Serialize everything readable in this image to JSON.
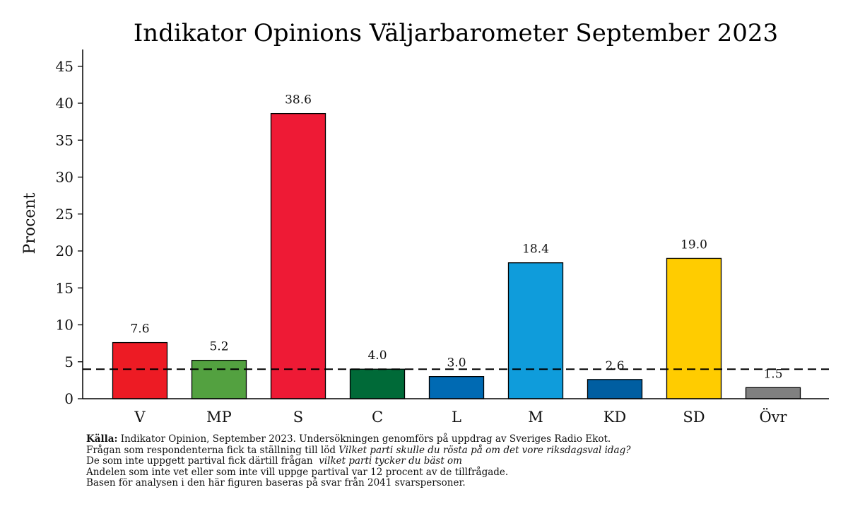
{
  "chart_data": {
    "type": "bar",
    "title": "Indikator Opinions Väljarbarometer September 2023",
    "ylabel": "Procent",
    "xlabel": "",
    "ylim": [
      0,
      47
    ],
    "yticks": [
      0,
      5,
      10,
      15,
      20,
      25,
      30,
      35,
      40,
      45
    ],
    "categories": [
      "V",
      "MP",
      "S",
      "C",
      "L",
      "M",
      "KD",
      "SD",
      "Övr"
    ],
    "values": [
      7.6,
      5.2,
      38.6,
      4.0,
      3.0,
      18.4,
      2.6,
      19.0,
      1.5
    ],
    "value_labels": [
      "7.6",
      "5.2",
      "38.6",
      "4.0",
      "3.0",
      "18.4",
      "2.6",
      "19.0",
      "1.5"
    ],
    "colors": [
      "#ED1B24",
      "#53A140",
      "#EE1A35",
      "#006A38",
      "#006AB3",
      "#0F9CDB",
      "#005EA1",
      "#FFCC00",
      "#808080"
    ],
    "reference_line": {
      "value": 4,
      "style": "dashed"
    },
    "grid": false,
    "legend": "none"
  },
  "footnote": {
    "source_label": "Källa:",
    "source_text": "Indikator Opinion, September 2023. Undersökningen genomförs på uppdrag av Sveriges Radio Ekot.",
    "line2_prefix": "Frågan som respondenterna fick ta ställning till löd",
    "line2_question": "Vilket parti skulle du rösta på om det vore riksdagsval idag?",
    "line3_prefix": "De som inte uppgett partival fick därtill frågan",
    "line3_question": "vilket parti tycker du bäst om",
    "line4": "Andelen som inte vet eller som inte vill uppge partival var 12 procent av de tillfrågade.",
    "line5": "Basen för analysen i den här figuren baseras på svar från 2041 svarspersoner."
  }
}
